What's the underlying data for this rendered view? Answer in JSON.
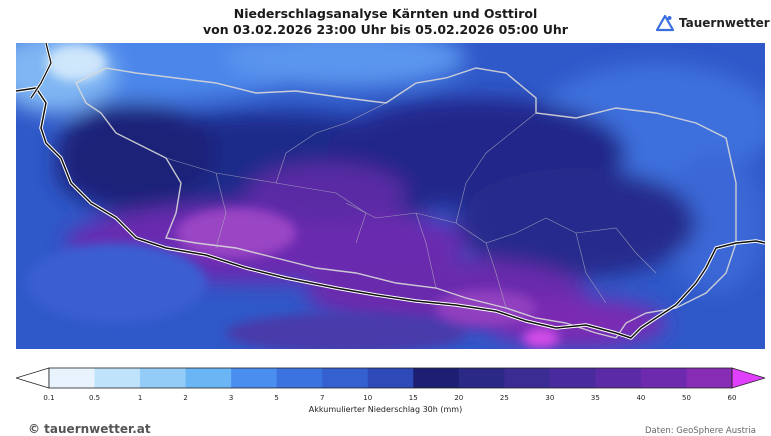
{
  "title": {
    "line1": "Niederschlagsanalyse Kärnten und Osttirol",
    "line2": "von 03.02.2026 23:00 Uhr bis 05.02.2026 05:00 Uhr"
  },
  "brand": {
    "logo_text": "Tauernwetter",
    "logo_icon": "triangle-mountain-icon",
    "accent": "#3b6fe0"
  },
  "colorbar": {
    "label": "Akkumulierter Niederschlag 30h (mm)",
    "ticks": [
      "0.1",
      "0.5",
      "1",
      "2",
      "3",
      "5",
      "7",
      "10",
      "15",
      "20",
      "25",
      "30",
      "35",
      "40",
      "50",
      "60"
    ],
    "colors": [
      "#e8f3fd",
      "#bfe3fa",
      "#93ccf7",
      "#6ab5f3",
      "#4a8ef0",
      "#3b74e0",
      "#3560cf",
      "#2d4ab8",
      "#1c1f72",
      "#2a2a86",
      "#3a2c93",
      "#4a2b9e",
      "#5b2aa6",
      "#6e2aae",
      "#872cb5",
      "#a437c0"
    ],
    "under_color": "#ffffff",
    "over_color": "#e040fb"
  },
  "footer": {
    "copyright": "© tauernwetter.at",
    "source": "Daten: GeoSphere Austria"
  }
}
